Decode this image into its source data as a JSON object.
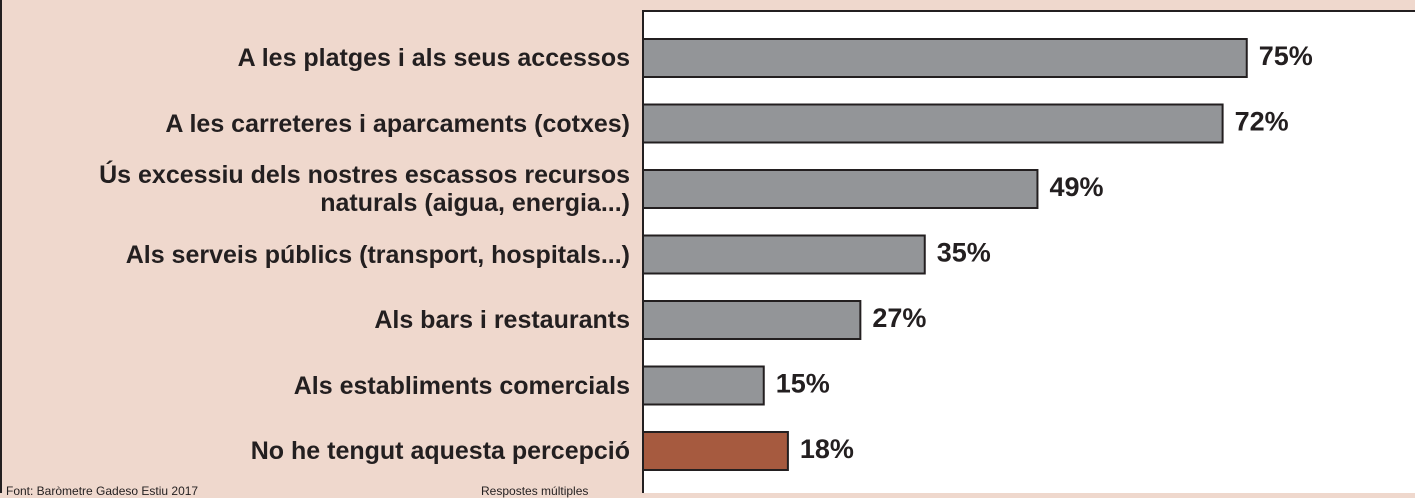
{
  "chart_data": {
    "type": "bar",
    "orientation": "horizontal",
    "categories": [
      "A les platges i als seus accessos",
      "A les carreteres i aparcaments (cotxes)",
      "Ús excessiu dels nostres escassos recursos naturals (aigua, energia...)",
      "Als serveis públics (transport, hospitals...)",
      "Als bars i restaurants",
      "Als establiments comercials",
      "No he tengut aquesta percepció"
    ],
    "values": [
      75,
      72,
      49,
      35,
      27,
      15,
      18
    ],
    "value_labels": [
      "75%",
      "72%",
      "49%",
      "35%",
      "27%",
      "15%",
      "18%"
    ],
    "colors": [
      "#939598",
      "#939598",
      "#939598",
      "#939598",
      "#939598",
      "#939598",
      "#a65a3f"
    ],
    "source": "Font: Baròmetre Gadeso Estiu 2017",
    "note": "Respostes múltiples"
  }
}
